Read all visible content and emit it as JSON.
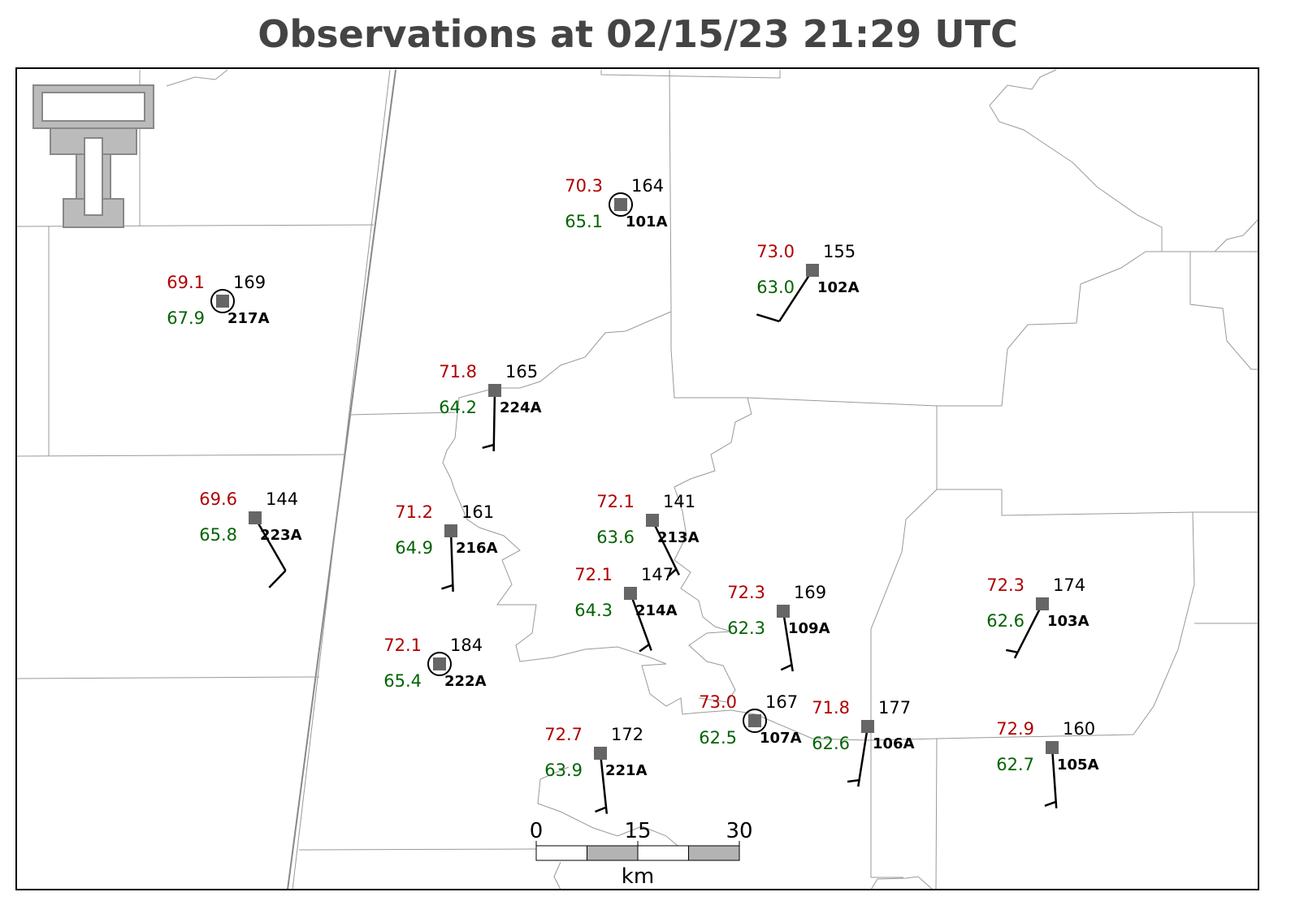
{
  "title": "Observations at 02/15/23 21:29 UTC",
  "scale": {
    "ticks": [
      0,
      15,
      30
    ],
    "unit": "km"
  },
  "stations": [
    {
      "id": "101A",
      "temperature": 70.3,
      "dewpoint": 65.1,
      "pressure": 164,
      "wind_direction": 0,
      "wind_speed": 0
    },
    {
      "id": "102A",
      "temperature": 73.0,
      "dewpoint": 63.0,
      "pressure": 155,
      "wind_direction": 213,
      "wind_speed": 10
    },
    {
      "id": "217A",
      "temperature": 69.1,
      "dewpoint": 67.9,
      "pressure": 169,
      "wind_direction": 0,
      "wind_speed": 0
    },
    {
      "id": "224A",
      "temperature": 71.8,
      "dewpoint": 64.2,
      "pressure": 165,
      "wind_direction": 181,
      "wind_speed": 5
    },
    {
      "id": "223A",
      "temperature": 69.6,
      "dewpoint": 65.8,
      "pressure": 144,
      "wind_direction": 150,
      "wind_speed": 10
    },
    {
      "id": "216A",
      "temperature": 71.2,
      "dewpoint": 64.9,
      "pressure": 161,
      "wind_direction": 178,
      "wind_speed": 5
    },
    {
      "id": "213A",
      "temperature": 72.1,
      "dewpoint": 63.6,
      "pressure": 141,
      "wind_direction": 154,
      "wind_speed": 5
    },
    {
      "id": "214A",
      "temperature": 72.1,
      "dewpoint": 64.3,
      "pressure": 147,
      "wind_direction": 160,
      "wind_speed": 5
    },
    {
      "id": "109A",
      "temperature": 72.3,
      "dewpoint": 62.3,
      "pressure": 169,
      "wind_direction": 171,
      "wind_speed": 5
    },
    {
      "id": "222A",
      "temperature": 72.1,
      "dewpoint": 65.4,
      "pressure": 184,
      "wind_direction": 0,
      "wind_speed": 0
    },
    {
      "id": "107A",
      "temperature": 73.0,
      "dewpoint": 62.5,
      "pressure": 167,
      "wind_direction": 0,
      "wind_speed": 0
    },
    {
      "id": "106A",
      "temperature": 71.8,
      "dewpoint": 62.6,
      "pressure": 177,
      "wind_direction": 189,
      "wind_speed": 5
    },
    {
      "id": "221A",
      "temperature": 72.7,
      "dewpoint": 63.9,
      "pressure": 172,
      "wind_direction": 174,
      "wind_speed": 5
    },
    {
      "id": "105A",
      "temperature": 72.9,
      "dewpoint": 62.7,
      "pressure": 160,
      "wind_direction": 176,
      "wind_speed": 5
    },
    {
      "id": "103A",
      "temperature": 72.3,
      "dewpoint": 62.6,
      "pressure": 174,
      "wind_direction": 207,
      "wind_speed": 5
    }
  ]
}
